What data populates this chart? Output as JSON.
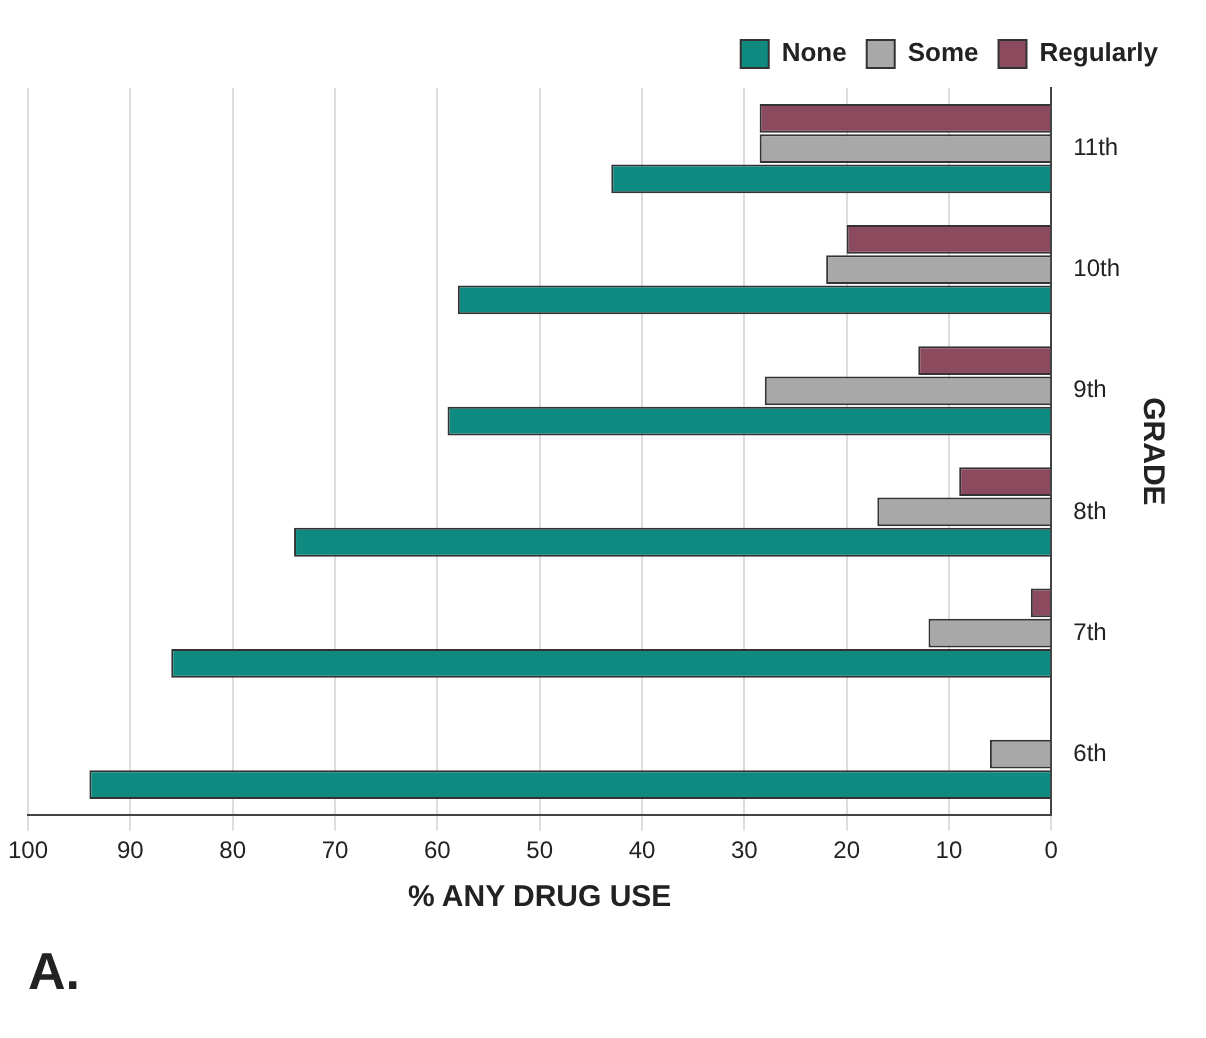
{
  "chart_data": {
    "type": "bar",
    "orientation": "horizontal",
    "title": "A.",
    "xlabel": "% ANY DRUG USE",
    "ylabel": "GRADE",
    "categories": [
      "11th",
      "10th",
      "9th",
      "8th",
      "7th",
      "6th"
    ],
    "series": [
      {
        "name": "Regularly",
        "color": "#8b4a5e",
        "values": [
          28.5,
          20,
          13,
          9,
          2,
          0
        ]
      },
      {
        "name": "Some",
        "color": "#a8a8a8",
        "values": [
          28.5,
          22,
          28,
          17,
          12,
          6
        ]
      },
      {
        "name": "None",
        "color": "#0e8a80",
        "values": [
          43,
          58,
          59,
          74,
          86,
          94
        ]
      }
    ],
    "xlim": [
      100,
      0
    ],
    "xticks": [
      0,
      10,
      20,
      30,
      40,
      50,
      60,
      70,
      80,
      90,
      100
    ],
    "grid": "x",
    "legend": "top right"
  }
}
